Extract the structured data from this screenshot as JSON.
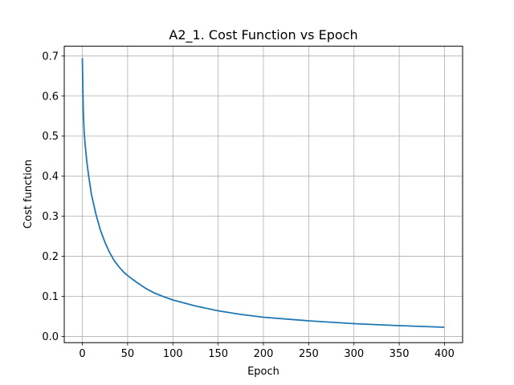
{
  "chart_data": {
    "type": "line",
    "title": "A2_1. Cost Function vs Epoch",
    "xlabel": "Epoch",
    "ylabel": "Cost function",
    "xlim": [
      -20,
      420
    ],
    "ylim": [
      -0.0155,
      0.7245
    ],
    "xticks": [
      0,
      50,
      100,
      150,
      200,
      250,
      300,
      350,
      400
    ],
    "yticks": [
      0.0,
      0.1,
      0.2,
      0.3,
      0.4,
      0.5,
      0.6,
      0.7
    ],
    "xtick_labels": [
      "0",
      "50",
      "100",
      "150",
      "200",
      "250",
      "300",
      "350",
      "400"
    ],
    "ytick_labels": [
      "0.0",
      "0.1",
      "0.2",
      "0.3",
      "0.4",
      "0.5",
      "0.6",
      "0.7"
    ],
    "grid": true,
    "series": [
      {
        "color": "#1f77b4",
        "x": [
          0,
          1,
          2,
          3,
          5,
          7,
          10,
          15,
          20,
          25,
          30,
          35,
          40,
          45,
          50,
          60,
          70,
          80,
          90,
          100,
          125,
          150,
          175,
          200,
          250,
          300,
          350,
          399
        ],
        "y": [
          0.693,
          0.565,
          0.51,
          0.48,
          0.435,
          0.4,
          0.355,
          0.305,
          0.265,
          0.235,
          0.21,
          0.19,
          0.175,
          0.162,
          0.152,
          0.135,
          0.12,
          0.108,
          0.099,
          0.091,
          0.076,
          0.064,
          0.055,
          0.048,
          0.039,
          0.032,
          0.027,
          0.023
        ]
      }
    ]
  }
}
